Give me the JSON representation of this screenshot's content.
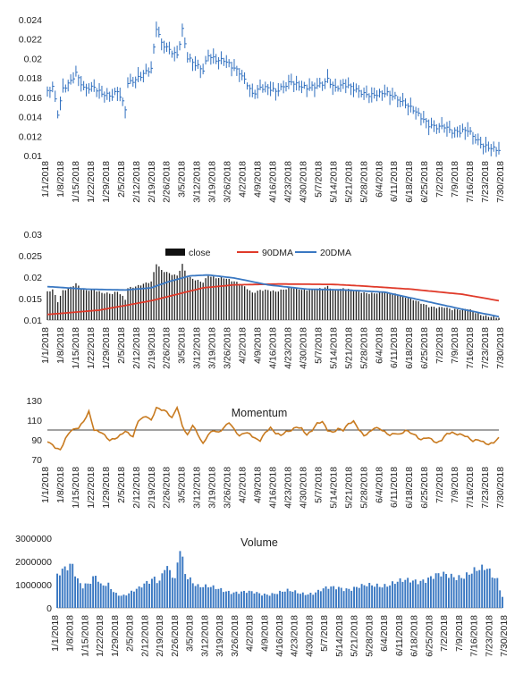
{
  "chart_data": [
    {
      "type": "ohlc",
      "title": "",
      "ylim": [
        0.01,
        0.024
      ],
      "yticks": [
        "0.024",
        "0.022",
        "0.02",
        "0.018",
        "0.016",
        "0.014",
        "0.012",
        "0.01"
      ],
      "xticks": [
        "1/1/2018",
        "1/8/2018",
        "1/15/2018",
        "1/22/2018",
        "1/29/2018",
        "2/5/2018",
        "2/12/2018",
        "2/19/2018",
        "2/26/2018",
        "3/5/2018",
        "3/12/2018",
        "3/19/2018",
        "3/26/2018",
        "4/2/2018",
        "4/9/2018",
        "4/16/2018",
        "4/23/2018",
        "4/30/2018",
        "5/7/2018",
        "5/14/2018",
        "5/21/2018",
        "5/28/2018",
        "6/4/2018",
        "6/11/2018",
        "6/18/2018",
        "6/25/2018",
        "7/2/2018",
        "7/9/2018",
        "7/16/2018",
        "7/23/2018",
        "7/30/2018"
      ],
      "close_key": [
        [
          0,
          0.0165
        ],
        [
          2,
          0.0172
        ],
        [
          4,
          0.0145
        ],
        [
          6,
          0.017
        ],
        [
          9,
          0.0176
        ],
        [
          11,
          0.0183
        ],
        [
          14,
          0.0168
        ],
        [
          18,
          0.0172
        ],
        [
          21,
          0.0165
        ],
        [
          25,
          0.016
        ],
        [
          27,
          0.0165
        ],
        [
          30,
          0.0148
        ],
        [
          31,
          0.0175
        ],
        [
          34,
          0.018
        ],
        [
          37,
          0.0185
        ],
        [
          40,
          0.0188
        ],
        [
          42,
          0.023
        ],
        [
          44,
          0.0215
        ],
        [
          47,
          0.021
        ],
        [
          50,
          0.0205
        ],
        [
          52,
          0.023
        ],
        [
          54,
          0.02
        ],
        [
          57,
          0.0192
        ],
        [
          60,
          0.0188
        ],
        [
          62,
          0.0205
        ],
        [
          65,
          0.02
        ],
        [
          68,
          0.0198
        ],
        [
          71,
          0.019
        ],
        [
          74,
          0.0185
        ],
        [
          77,
          0.0175
        ],
        [
          79,
          0.0165
        ],
        [
          82,
          0.017
        ],
        [
          85,
          0.0168
        ],
        [
          88,
          0.0165
        ],
        [
          91,
          0.0172
        ],
        [
          94,
          0.0178
        ],
        [
          97,
          0.0172
        ],
        [
          100,
          0.0168
        ],
        [
          103,
          0.017
        ],
        [
          106,
          0.0175
        ],
        [
          108,
          0.018
        ],
        [
          111,
          0.017
        ],
        [
          114,
          0.0172
        ],
        [
          118,
          0.0168
        ],
        [
          122,
          0.0165
        ],
        [
          126,
          0.0163
        ],
        [
          130,
          0.0163
        ],
        [
          134,
          0.016
        ],
        [
          138,
          0.0155
        ],
        [
          141,
          0.0148
        ],
        [
          144,
          0.0138
        ],
        [
          147,
          0.013
        ],
        [
          150,
          0.013
        ],
        [
          153,
          0.0132
        ],
        [
          156,
          0.0125
        ],
        [
          159,
          0.0123
        ],
        [
          162,
          0.0125
        ],
        [
          165,
          0.0118
        ],
        [
          168,
          0.0112
        ],
        [
          171,
          0.0108
        ],
        [
          174,
          0.0104
        ]
      ]
    },
    {
      "type": "bar+line",
      "title": "",
      "ylim": [
        0.01,
        0.03
      ],
      "yticks": [
        "0.03",
        "0.025",
        "0.02",
        "0.015",
        "0.01"
      ],
      "legend": [
        "close",
        "90DMA",
        "20DMA"
      ],
      "legend_position": "top",
      "colors": {
        "close": "#000000",
        "90DMA": "#e03a2a",
        "20DMA": "#3a78c2"
      },
      "series": [
        {
          "name": "90DMA",
          "key": [
            [
              0,
              0.0113
            ],
            [
              20,
              0.0123
            ],
            [
              40,
              0.0145
            ],
            [
              60,
              0.0175
            ],
            [
              72,
              0.0182
            ],
            [
              90,
              0.0184
            ],
            [
              110,
              0.0183
            ],
            [
              120,
              0.018
            ],
            [
              140,
              0.0172
            ],
            [
              160,
              0.016
            ],
            [
              174,
              0.0145
            ]
          ]
        },
        {
          "name": "20DMA",
          "key": [
            [
              0,
              0.0178
            ],
            [
              15,
              0.0172
            ],
            [
              30,
              0.017
            ],
            [
              40,
              0.0175
            ],
            [
              47,
              0.019
            ],
            [
              55,
              0.0203
            ],
            [
              62,
              0.0205
            ],
            [
              72,
              0.0198
            ],
            [
              85,
              0.0182
            ],
            [
              100,
              0.0172
            ],
            [
              115,
              0.017
            ],
            [
              130,
              0.0165
            ],
            [
              145,
              0.0145
            ],
            [
              160,
              0.0125
            ],
            [
              174,
              0.0108
            ]
          ]
        }
      ]
    },
    {
      "type": "line",
      "title": "Momentum",
      "ylim": [
        70,
        130
      ],
      "yticks": [
        "130",
        "110",
        "90",
        "70"
      ],
      "reference_line": 100,
      "color": "#c87a1f",
      "key": [
        [
          0,
          88
        ],
        [
          3,
          82
        ],
        [
          5,
          80
        ],
        [
          7,
          92
        ],
        [
          9,
          100
        ],
        [
          12,
          102
        ],
        [
          14,
          108
        ],
        [
          16,
          118
        ],
        [
          18,
          100
        ],
        [
          21,
          98
        ],
        [
          24,
          90
        ],
        [
          27,
          92
        ],
        [
          30,
          98
        ],
        [
          33,
          93
        ],
        [
          35,
          110
        ],
        [
          38,
          115
        ],
        [
          40,
          110
        ],
        [
          42,
          122
        ],
        [
          44,
          120
        ],
        [
          46,
          118
        ],
        [
          48,
          112
        ],
        [
          50,
          124
        ],
        [
          52,
          105
        ],
        [
          54,
          95
        ],
        [
          56,
          105
        ],
        [
          58,
          95
        ],
        [
          60,
          85
        ],
        [
          62,
          95
        ],
        [
          64,
          100
        ],
        [
          66,
          98
        ],
        [
          68,
          103
        ],
        [
          70,
          108
        ],
        [
          72,
          100
        ],
        [
          74,
          93
        ],
        [
          76,
          97
        ],
        [
          78,
          96
        ],
        [
          80,
          92
        ],
        [
          82,
          90
        ],
        [
          84,
          98
        ],
        [
          86,
          102
        ],
        [
          88,
          96
        ],
        [
          90,
          94
        ],
        [
          92,
          98
        ],
        [
          94,
          100
        ],
        [
          96,
          104
        ],
        [
          98,
          102
        ],
        [
          100,
          95
        ],
        [
          102,
          99
        ],
        [
          104,
          106
        ],
        [
          106,
          108
        ],
        [
          108,
          100
        ],
        [
          110,
          98
        ],
        [
          112,
          102
        ],
        [
          114,
          100
        ],
        [
          116,
          106
        ],
        [
          118,
          108
        ],
        [
          120,
          100
        ],
        [
          122,
          94
        ],
        [
          124,
          98
        ],
        [
          126,
          103
        ],
        [
          128,
          102
        ],
        [
          130,
          98
        ],
        [
          132,
          94
        ],
        [
          134,
          96
        ],
        [
          136,
          95
        ],
        [
          138,
          100
        ],
        [
          140,
          98
        ],
        [
          142,
          95
        ],
        [
          144,
          90
        ],
        [
          146,
          92
        ],
        [
          148,
          90
        ],
        [
          150,
          86
        ],
        [
          152,
          90
        ],
        [
          154,
          97
        ],
        [
          156,
          98
        ],
        [
          158,
          96
        ],
        [
          160,
          95
        ],
        [
          162,
          92
        ],
        [
          164,
          88
        ],
        [
          166,
          90
        ],
        [
          168,
          88
        ],
        [
          170,
          86
        ],
        [
          172,
          88
        ],
        [
          174,
          92
        ]
      ]
    },
    {
      "type": "bar",
      "title": "Volume",
      "ylim": [
        0,
        3000000
      ],
      "yticks": [
        "3000000",
        "2000000",
        "1000000",
        "0"
      ],
      "color": "#3a78c2",
      "key": [
        [
          0,
          1300000
        ],
        [
          3,
          1600000
        ],
        [
          6,
          1900000
        ],
        [
          8,
          1300000
        ],
        [
          10,
          1000000
        ],
        [
          13,
          1100000
        ],
        [
          15,
          1300000
        ],
        [
          17,
          900000
        ],
        [
          20,
          1000000
        ],
        [
          23,
          650000
        ],
        [
          26,
          550000
        ],
        [
          29,
          650000
        ],
        [
          32,
          800000
        ],
        [
          35,
          1100000
        ],
        [
          38,
          1400000
        ],
        [
          40,
          1200000
        ],
        [
          42,
          1800000
        ],
        [
          44,
          1500000
        ],
        [
          46,
          1100000
        ],
        [
          48,
          2500000
        ],
        [
          50,
          1500000
        ],
        [
          52,
          1300000
        ],
        [
          55,
          1000000
        ],
        [
          58,
          900000
        ],
        [
          62,
          800000
        ],
        [
          66,
          750000
        ],
        [
          70,
          700000
        ],
        [
          75,
          650000
        ],
        [
          80,
          600000
        ],
        [
          85,
          650000
        ],
        [
          90,
          700000
        ],
        [
          95,
          650000
        ],
        [
          100,
          650000
        ],
        [
          105,
          800000
        ],
        [
          110,
          900000
        ],
        [
          115,
          850000
        ],
        [
          120,
          900000
        ],
        [
          125,
          1000000
        ],
        [
          130,
          1050000
        ],
        [
          135,
          1100000
        ],
        [
          140,
          1200000
        ],
        [
          145,
          1300000
        ],
        [
          150,
          1350000
        ],
        [
          155,
          1400000
        ],
        [
          160,
          1450000
        ],
        [
          165,
          1550000
        ],
        [
          168,
          1700000
        ],
        [
          170,
          1500000
        ],
        [
          172,
          1300000
        ],
        [
          174,
          500000
        ]
      ]
    }
  ]
}
